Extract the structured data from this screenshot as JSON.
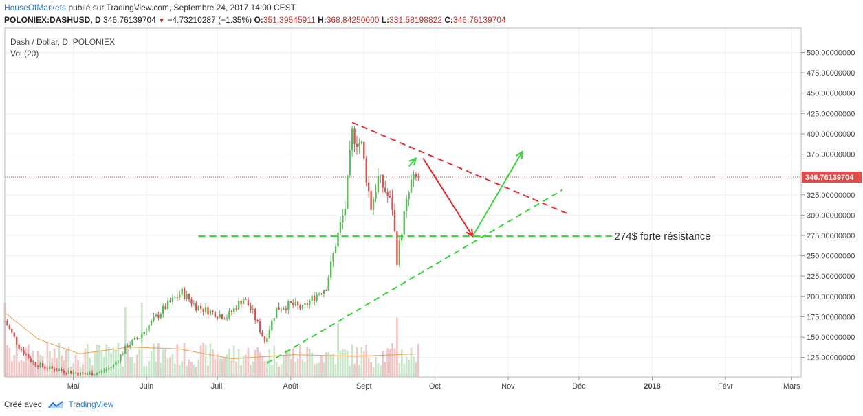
{
  "header": {
    "brand": "HouseOfMarkets",
    "published": " publié sur TradingView.com, Septembre 24, 2017 14:00 CEST",
    "symbol": "POLONIEX:DASHUSD, D",
    "last": "346.76139704",
    "change": "−4.73210287 (−1.35%)",
    "open_label": "O:",
    "open": "351.39545911",
    "high_label": "H:",
    "high": "368.84250000",
    "low_label": "L:",
    "low": "331.58198822",
    "close_label": "C:",
    "close": "346.76139704"
  },
  "legend": {
    "title": "Dash / Dollar, D, POLONIEX",
    "volume": "Vol (20)"
  },
  "footer": {
    "created_with": "Créé avec",
    "tradingview": "TradingView"
  },
  "colors": {
    "up": "#5cb85c",
    "down": "#d9534f",
    "vol_up": "#c8e6c9",
    "vol_down": "#f2c6c6",
    "ma": "#f0a04b",
    "price_tag": "#e04b4b",
    "dash_red": "#e83030",
    "dash_green": "#34d634",
    "arrow_red": "#e82020",
    "arrow_green": "#3cd63c"
  },
  "chart_data": {
    "type": "candlestick",
    "title": "Dash / Dollar, D, POLONIEX",
    "x_tick_labels": [
      "Mai",
      "Juin",
      "Juill",
      "Août",
      "Sept",
      "Oct",
      "Nov",
      "Déc",
      "2018",
      "Févr",
      "Mars"
    ],
    "x_tick_dates": [
      "2017-05-01",
      "2017-06-01",
      "2017-07-01",
      "2017-08-01",
      "2017-09-01",
      "2017-10-01",
      "2017-11-01",
      "2017-12-01",
      "2018-01-01",
      "2018-02-01",
      "2018-03-01"
    ],
    "x_range": [
      "2017-04-02",
      "2018-03-05"
    ],
    "y_range": [
      101,
      530
    ],
    "y_tick_values": [
      125,
      150,
      175,
      200,
      225,
      250,
      275,
      300,
      325,
      350,
      375,
      400,
      425,
      450,
      475,
      500
    ],
    "y_tick_labels": [
      "125.00000000",
      "150.00000000",
      "175.00000000",
      "200.00000000",
      "225.00000000",
      "250.00000000",
      "275.00000000",
      "300.00000000",
      "325.00000000",
      "350.00000000",
      "375.00000000",
      "400.00000000",
      "425.00000000",
      "450.00000000",
      "475.00000000",
      "500.00000000"
    ],
    "last_price_label": "346.76139704",
    "last_price": 346.76,
    "price_path": [
      [
        "2017-04-02",
        170
      ],
      [
        "2017-04-08",
        138
      ],
      [
        "2017-04-14",
        118
      ],
      [
        "2017-04-20",
        112
      ],
      [
        "2017-04-28",
        108
      ],
      [
        "2017-05-05",
        104
      ],
      [
        "2017-05-12",
        106
      ],
      [
        "2017-05-18",
        115
      ],
      [
        "2017-05-24",
        140
      ],
      [
        "2017-05-29",
        150
      ],
      [
        "2017-06-03",
        168
      ],
      [
        "2017-06-10",
        190
      ],
      [
        "2017-06-16",
        205
      ],
      [
        "2017-06-22",
        188
      ],
      [
        "2017-06-29",
        180
      ],
      [
        "2017-07-05",
        175
      ],
      [
        "2017-07-12",
        198
      ],
      [
        "2017-07-16",
        180
      ],
      [
        "2017-07-21",
        145
      ],
      [
        "2017-07-26",
        185
      ],
      [
        "2017-08-01",
        190
      ],
      [
        "2017-08-06",
        185
      ],
      [
        "2017-08-11",
        200
      ],
      [
        "2017-08-16",
        212
      ],
      [
        "2017-08-20",
        265
      ],
      [
        "2017-08-24",
        310
      ],
      [
        "2017-08-27",
        400
      ],
      [
        "2017-08-31",
        385
      ],
      [
        "2017-09-04",
        310
      ],
      [
        "2017-09-07",
        345
      ],
      [
        "2017-09-10",
        330
      ],
      [
        "2017-09-13",
        310
      ],
      [
        "2017-09-15",
        245
      ],
      [
        "2017-09-18",
        300
      ],
      [
        "2017-09-21",
        340
      ],
      [
        "2017-09-24",
        347
      ]
    ],
    "volume_ma": [
      [
        0,
        0.78
      ],
      [
        0.08,
        0.46
      ],
      [
        0.18,
        0.28
      ],
      [
        0.3,
        0.36
      ],
      [
        0.42,
        0.34
      ],
      [
        0.55,
        0.22
      ],
      [
        0.7,
        0.27
      ],
      [
        0.85,
        0.25
      ],
      [
        1,
        0.28
      ]
    ],
    "volume_spikes": [
      [
        "2017-04-02",
        0.9
      ],
      [
        "2017-05-23",
        0.85
      ],
      [
        "2017-05-30",
        0.9
      ],
      [
        "2017-09-15",
        0.72
      ],
      [
        "2017-08-21",
        0.65
      ]
    ],
    "annotations": [
      {
        "type": "hline_dashed",
        "color": "green",
        "y": 274,
        "x_start": "2017-06-23",
        "x_end": "2017-12-15"
      },
      {
        "type": "text",
        "text": "274$ forte résistance",
        "x": "2017-12-16",
        "y": 274
      },
      {
        "type": "trendline_dashed",
        "color": "red",
        "from": [
          "2017-08-27",
          414
        ],
        "to": [
          "2017-11-26",
          302
        ]
      },
      {
        "type": "trendline_dashed",
        "color": "green",
        "from": [
          "2017-07-22",
          118
        ],
        "to": [
          "2017-11-24",
          331
        ]
      },
      {
        "type": "arrow",
        "color": "green",
        "from": [
          "2017-09-20",
          360
        ],
        "to": [
          "2017-09-23",
          370
        ]
      },
      {
        "type": "arrow",
        "color": "red",
        "from": [
          "2017-09-26",
          370
        ],
        "to": [
          "2017-10-17",
          274
        ]
      },
      {
        "type": "arrow",
        "color": "green",
        "from": [
          "2017-10-17",
          274
        ],
        "to": [
          "2017-11-07",
          378
        ]
      }
    ]
  }
}
